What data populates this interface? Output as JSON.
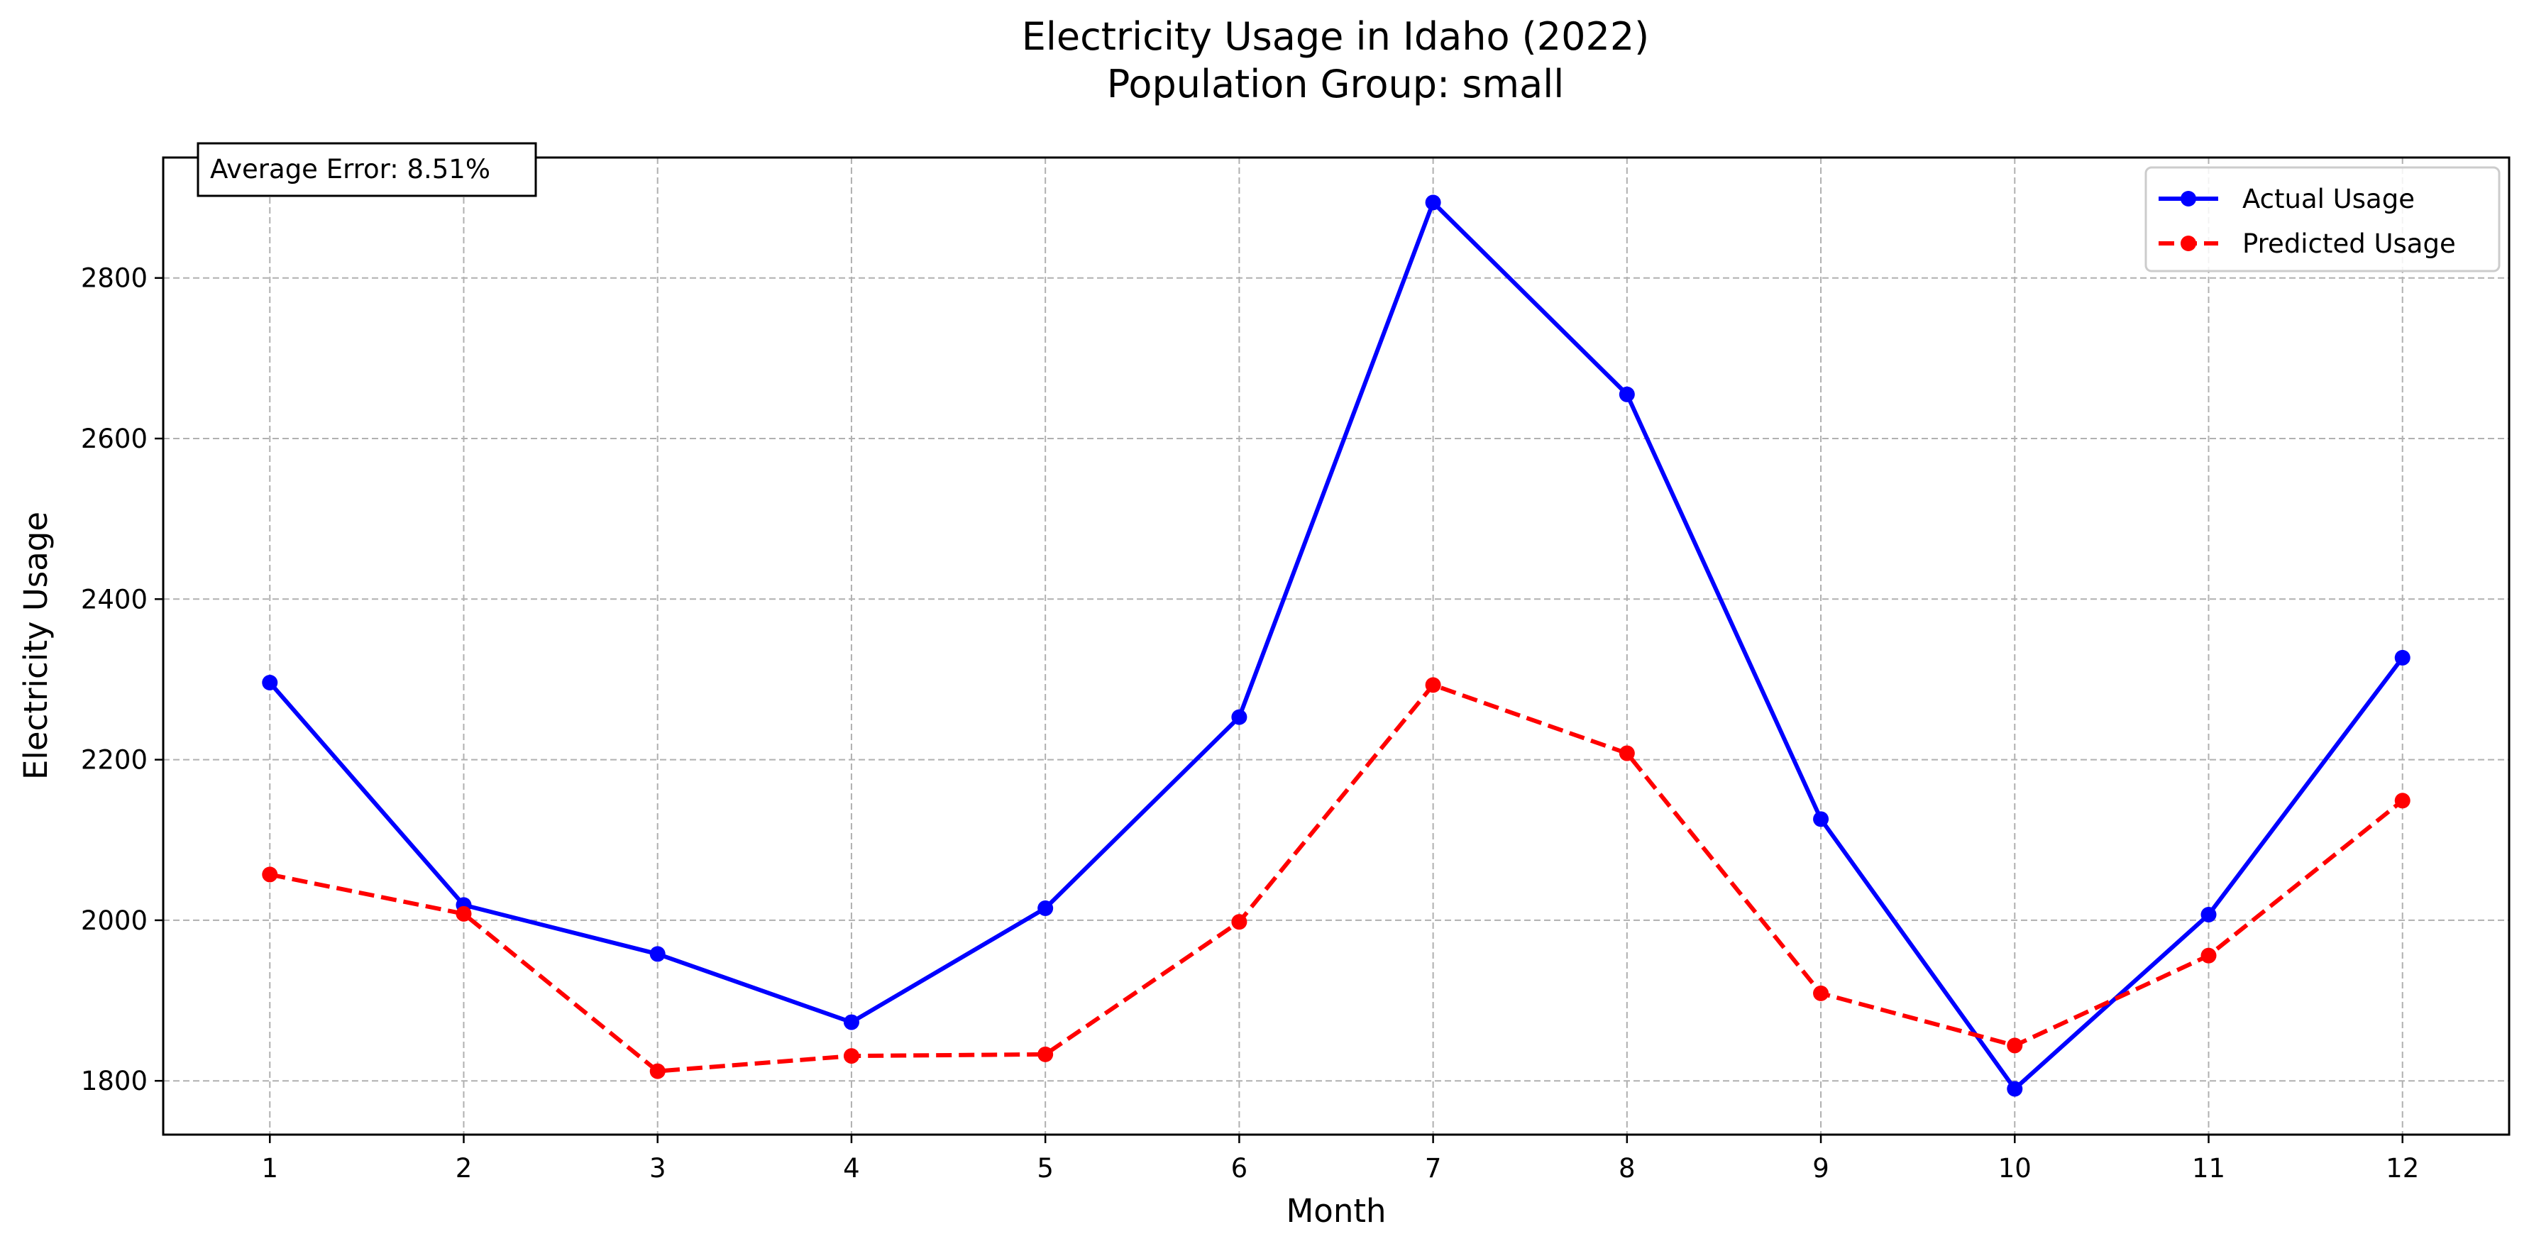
{
  "chart_data": {
    "type": "line",
    "title": "Electricity Usage in Idaho (2022)",
    "subtitle": "Population Group: small",
    "xlabel": "Month",
    "ylabel": "Electricity Usage",
    "x": [
      1,
      2,
      3,
      4,
      5,
      6,
      7,
      8,
      9,
      10,
      11,
      12
    ],
    "x_tick_labels": [
      "1",
      "2",
      "3",
      "4",
      "5",
      "6",
      "7",
      "8",
      "9",
      "10",
      "11",
      "12"
    ],
    "xlim": [
      0.45,
      12.55
    ],
    "ylim": [
      1733,
      2950
    ],
    "y_ticks": [
      1800,
      2000,
      2200,
      2400,
      2600,
      2800
    ],
    "y_tick_labels": [
      "1800",
      "2000",
      "2200",
      "2400",
      "2600",
      "2800"
    ],
    "grid": true,
    "legend_position": "top-right",
    "series": [
      {
        "name": "Actual Usage",
        "color": "#0000ff",
        "line_style": "solid",
        "marker": "circle",
        "values": [
          2296,
          2019,
          1958,
          1873,
          2015,
          2253,
          2894,
          2655,
          2126,
          1790,
          2007,
          2327
        ]
      },
      {
        "name": "Predicted Usage",
        "color": "#ff0000",
        "line_style": "dashed",
        "marker": "circle",
        "values": [
          2057,
          2008,
          1812,
          1831,
          1833,
          1998,
          2293,
          2208,
          1909,
          1844,
          1956,
          2149
        ]
      }
    ],
    "annotations": [
      {
        "text": "Average Error: 8.51%",
        "position": "top-left"
      }
    ]
  }
}
